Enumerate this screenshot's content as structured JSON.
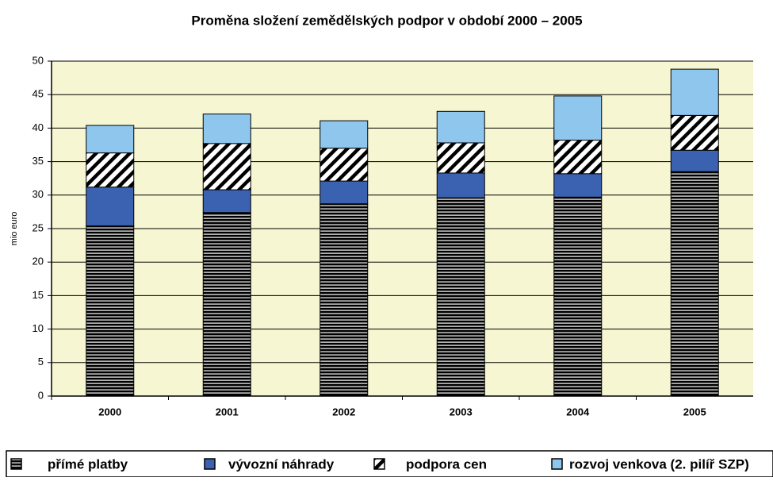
{
  "chart_data": {
    "type": "stacked_bar",
    "title": "Proměna složení zemědělských podpor v období 2000 – 2005",
    "y_label": "mio euro",
    "categories": [
      "2000",
      "2001",
      "2002",
      "2003",
      "2004",
      "2005"
    ],
    "series": [
      {
        "name": "přímé platby",
        "color": "#000000",
        "pattern": "horizontal",
        "values": [
          25.4,
          27.4,
          28.7,
          29.6,
          29.7,
          33.5
        ]
      },
      {
        "name": "vývozní náhrady",
        "color": "#3a62b0",
        "values": [
          5.8,
          3.4,
          3.4,
          3.7,
          3.5,
          3.2
        ]
      },
      {
        "name": "podpora cen",
        "color": "#000000",
        "pattern": "diagonal",
        "values": [
          5.1,
          6.9,
          4.9,
          4.5,
          5.0,
          5.2
        ]
      },
      {
        "name": "rozvoj venkova (2. pilíř SZP)",
        "color": "#8fc6ee",
        "values": [
          4.1,
          4.4,
          4.1,
          4.7,
          6.6,
          6.9
        ]
      }
    ],
    "ylim": [
      0,
      50
    ],
    "yticks": [
      0,
      5,
      10,
      15,
      20,
      25,
      30,
      35,
      40,
      45,
      50
    ],
    "grid": true,
    "background": "#f6f6d2"
  }
}
